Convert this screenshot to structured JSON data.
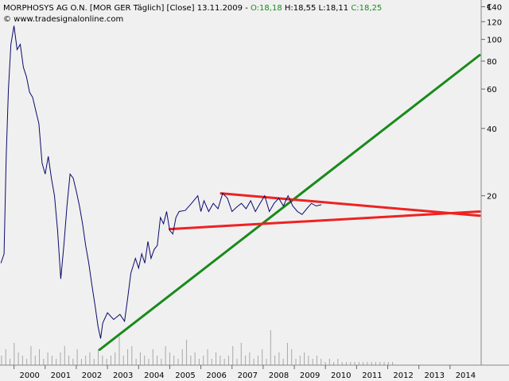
{
  "header": {
    "instrument": "MORPHOSYS AG O.N. [MOR GER  Täglich] [Close] 13.11.2009 - ",
    "open": "O:18,18",
    "high_low": " H:18,55 L:18,11 ",
    "close": "C:18,25",
    "source": "© www.tradesignalonline.com"
  },
  "colors": {
    "background": "#f0f0f0",
    "price": "#0a0a6e",
    "volume": "#a8a8a8",
    "support_line": "#1a8a1a",
    "channel_lines": "#ee2222"
  },
  "chart_data": {
    "type": "line",
    "title": "MORPHOSYS AG O.N.",
    "xlabel": "",
    "ylabel": "€",
    "y_scale": "log",
    "ylim": [
      3.5,
      150
    ],
    "xlim": [
      1999.55,
      2015.0
    ],
    "y_ticks": [
      140,
      120,
      100,
      80,
      60,
      40,
      20
    ],
    "y_unit_label": "€",
    "x_ticks": [
      "2000",
      "2001",
      "2002",
      "2003",
      "2004",
      "2005",
      "2006",
      "2007",
      "2008",
      "2009",
      "2010",
      "2011",
      "2012",
      "2013",
      "2014"
    ],
    "series": [
      {
        "kind": "price",
        "points": [
          [
            1999.58,
            10
          ],
          [
            1999.68,
            11
          ],
          [
            1999.75,
            30
          ],
          [
            1999.82,
            60
          ],
          [
            1999.9,
            95
          ],
          [
            2000.0,
            115
          ],
          [
            2000.1,
            90
          ],
          [
            2000.2,
            95
          ],
          [
            2000.3,
            75
          ],
          [
            2000.4,
            68
          ],
          [
            2000.5,
            58
          ],
          [
            2000.6,
            55
          ],
          [
            2000.7,
            48
          ],
          [
            2000.8,
            42
          ],
          [
            2000.9,
            28
          ],
          [
            2001.0,
            25
          ],
          [
            2001.1,
            30
          ],
          [
            2001.2,
            24
          ],
          [
            2001.3,
            20
          ],
          [
            2001.4,
            14
          ],
          [
            2001.5,
            8.5
          ],
          [
            2001.6,
            12
          ],
          [
            2001.7,
            18
          ],
          [
            2001.8,
            25
          ],
          [
            2001.9,
            24
          ],
          [
            2002.0,
            21
          ],
          [
            2002.1,
            18
          ],
          [
            2002.2,
            15
          ],
          [
            2002.3,
            12
          ],
          [
            2002.4,
            10
          ],
          [
            2002.5,
            8
          ],
          [
            2002.6,
            6.5
          ],
          [
            2002.7,
            5.2
          ],
          [
            2002.78,
            4.6
          ],
          [
            2002.85,
            5.4
          ],
          [
            2003.0,
            6
          ],
          [
            2003.2,
            5.6
          ],
          [
            2003.4,
            5.9
          ],
          [
            2003.55,
            5.5
          ],
          [
            2003.65,
            7
          ],
          [
            2003.75,
            9
          ],
          [
            2003.9,
            10.5
          ],
          [
            2004.0,
            9.5
          ],
          [
            2004.1,
            11
          ],
          [
            2004.2,
            10
          ],
          [
            2004.3,
            12.5
          ],
          [
            2004.4,
            10.5
          ],
          [
            2004.5,
            11.5
          ],
          [
            2004.6,
            12
          ],
          [
            2004.7,
            16
          ],
          [
            2004.8,
            15
          ],
          [
            2004.9,
            17
          ],
          [
            2005.0,
            14
          ],
          [
            2005.1,
            13.5
          ],
          [
            2005.2,
            16
          ],
          [
            2005.3,
            17
          ],
          [
            2005.5,
            17.2
          ],
          [
            2005.7,
            18.5
          ],
          [
            2005.9,
            20
          ],
          [
            2006.0,
            17
          ],
          [
            2006.1,
            19
          ],
          [
            2006.25,
            17
          ],
          [
            2006.4,
            18.5
          ],
          [
            2006.55,
            17.5
          ],
          [
            2006.7,
            20.5
          ],
          [
            2006.85,
            19.5
          ],
          [
            2007.0,
            17
          ],
          [
            2007.15,
            17.8
          ],
          [
            2007.3,
            18.5
          ],
          [
            2007.45,
            17.5
          ],
          [
            2007.6,
            19
          ],
          [
            2007.75,
            17
          ],
          [
            2007.9,
            18.5
          ],
          [
            2008.05,
            20
          ],
          [
            2008.2,
            17
          ],
          [
            2008.35,
            18.5
          ],
          [
            2008.5,
            19.5
          ],
          [
            2008.65,
            18
          ],
          [
            2008.8,
            20
          ],
          [
            2008.95,
            18
          ],
          [
            2009.1,
            17
          ],
          [
            2009.25,
            16.5
          ],
          [
            2009.4,
            17.5
          ],
          [
            2009.55,
            18.5
          ],
          [
            2009.7,
            18
          ],
          [
            2009.87,
            18.25
          ]
        ]
      },
      {
        "kind": "trendline",
        "role": "support",
        "points": [
          [
            2002.75,
            4.1
          ],
          [
            2014.95,
            85
          ]
        ]
      },
      {
        "kind": "trendline",
        "role": "resistance",
        "points": [
          [
            2006.65,
            20.5
          ],
          [
            2014.95,
            16.3
          ]
        ]
      },
      {
        "kind": "trendline",
        "role": "lower-channel",
        "points": [
          [
            2005.0,
            14.2
          ],
          [
            2014.95,
            17.0
          ]
        ]
      }
    ],
    "volume": {
      "x_start": 1999.6,
      "x_step": 0.135,
      "values": [
        3,
        5,
        2,
        7,
        4,
        3,
        2,
        6,
        3,
        5,
        2,
        4,
        3,
        2,
        4,
        6,
        3,
        2,
        5,
        2,
        3,
        4,
        2,
        5,
        3,
        2,
        3,
        4,
        9,
        3,
        5,
        6,
        2,
        4,
        3,
        2,
        5,
        3,
        2,
        6,
        4,
        3,
        2,
        5,
        8,
        3,
        4,
        2,
        3,
        5,
        2,
        4,
        3,
        2,
        3,
        6,
        2,
        7,
        3,
        4,
        2,
        3,
        5,
        2,
        11,
        3,
        4,
        2,
        7,
        5,
        2,
        3,
        4,
        3,
        2,
        3,
        2,
        1,
        2,
        1,
        2,
        1,
        1,
        1,
        1,
        1,
        1,
        1,
        1,
        1,
        1,
        1,
        1,
        1
      ]
    },
    "grid": false,
    "legend": "none"
  }
}
